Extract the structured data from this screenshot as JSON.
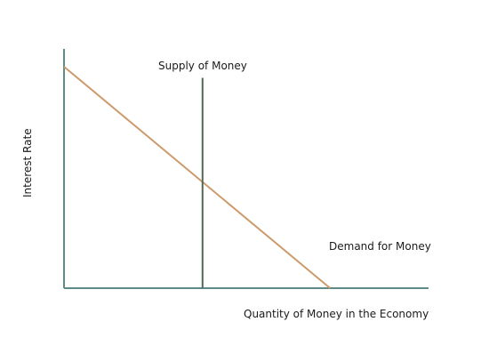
{
  "chart_data": {
    "type": "line",
    "title": "",
    "xlabel": "Quantity of Money in the Economy",
    "ylabel": "Interest Rate",
    "grid": false,
    "series": [
      {
        "name": "Demand for Money",
        "kind": "downward-sloping line",
        "color": "#cd9a6a",
        "points": [
          [
            0,
            1.0
          ],
          [
            0.73,
            0
          ]
        ]
      },
      {
        "name": "Supply of Money",
        "kind": "vertical line",
        "color": "#4f6b57",
        "points": [
          [
            0.38,
            0
          ],
          [
            0.38,
            0.95
          ]
        ]
      }
    ],
    "axis_color": "#5e8a8a"
  }
}
